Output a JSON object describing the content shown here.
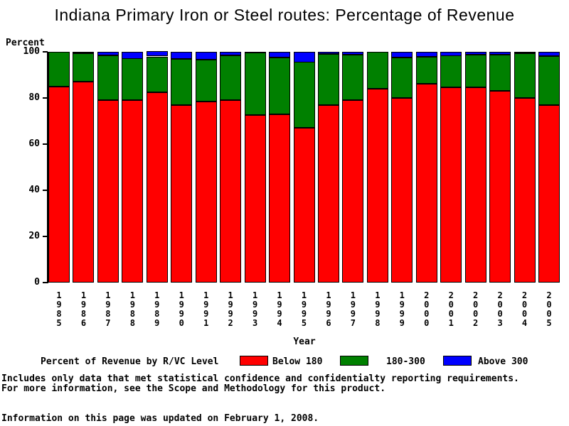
{
  "title": "Indiana Primary Iron or Steel routes: Percentage of Revenue",
  "chart_data": {
    "type": "bar",
    "stacked": true,
    "title": "Indiana Primary Iron or Steel routes: Percentage of Revenue",
    "ylabel": "Percent",
    "xlabel": "Year",
    "ylim": [
      0,
      100
    ],
    "yticks": [
      0,
      20,
      40,
      60,
      80,
      100
    ],
    "grid": false,
    "legend_position": "bottom",
    "legend_title": "Percent of Revenue by R/VC Level",
    "categories": [
      "1985",
      "1986",
      "1987",
      "1988",
      "1989",
      "1990",
      "1991",
      "1992",
      "1993",
      "1994",
      "1995",
      "1996",
      "1997",
      "1998",
      "1999",
      "2000",
      "2001",
      "2002",
      "2003",
      "2004",
      "2005"
    ],
    "series": [
      {
        "name": "Below 180",
        "color": "#ff0000",
        "values": [
          85,
          87,
          79,
          79,
          82.5,
          77,
          78.5,
          79,
          72.5,
          73,
          67,
          77,
          79,
          84,
          80,
          86,
          84.5,
          84.5,
          83,
          80,
          77
        ]
      },
      {
        "name": "180-300",
        "color": "#008000",
        "values": [
          15,
          12.3,
          19.5,
          18,
          15.5,
          20,
          18,
          19.5,
          27,
          24.5,
          28.5,
          22,
          19.8,
          16,
          17.5,
          11.8,
          13.7,
          14.3,
          15.8,
          19.4,
          21.3
        ]
      },
      {
        "name": "Above 300",
        "color": "#0000ff",
        "values": [
          0,
          0.7,
          1.5,
          3,
          2,
          3,
          3.5,
          1.5,
          0.5,
          2.5,
          4.5,
          1,
          1.2,
          0,
          2.5,
          2.2,
          1.8,
          1.2,
          1.2,
          0.6,
          1.7
        ]
      }
    ]
  },
  "legend": {
    "title": "Percent of Revenue by R/VC Level",
    "items": [
      {
        "label": "Below 180",
        "color": "#ff0000"
      },
      {
        "label": "180-300",
        "color": "#008000"
      },
      {
        "label": "Above 300",
        "color": "#0000ff"
      }
    ]
  },
  "footer": {
    "line1": "Includes only data that met statistical confidence and confidentialty reporting requirements.",
    "line2": "For more information, see the Scope and Methodology for this product.",
    "updated": "Information on this page was updated on February 1, 2008."
  }
}
